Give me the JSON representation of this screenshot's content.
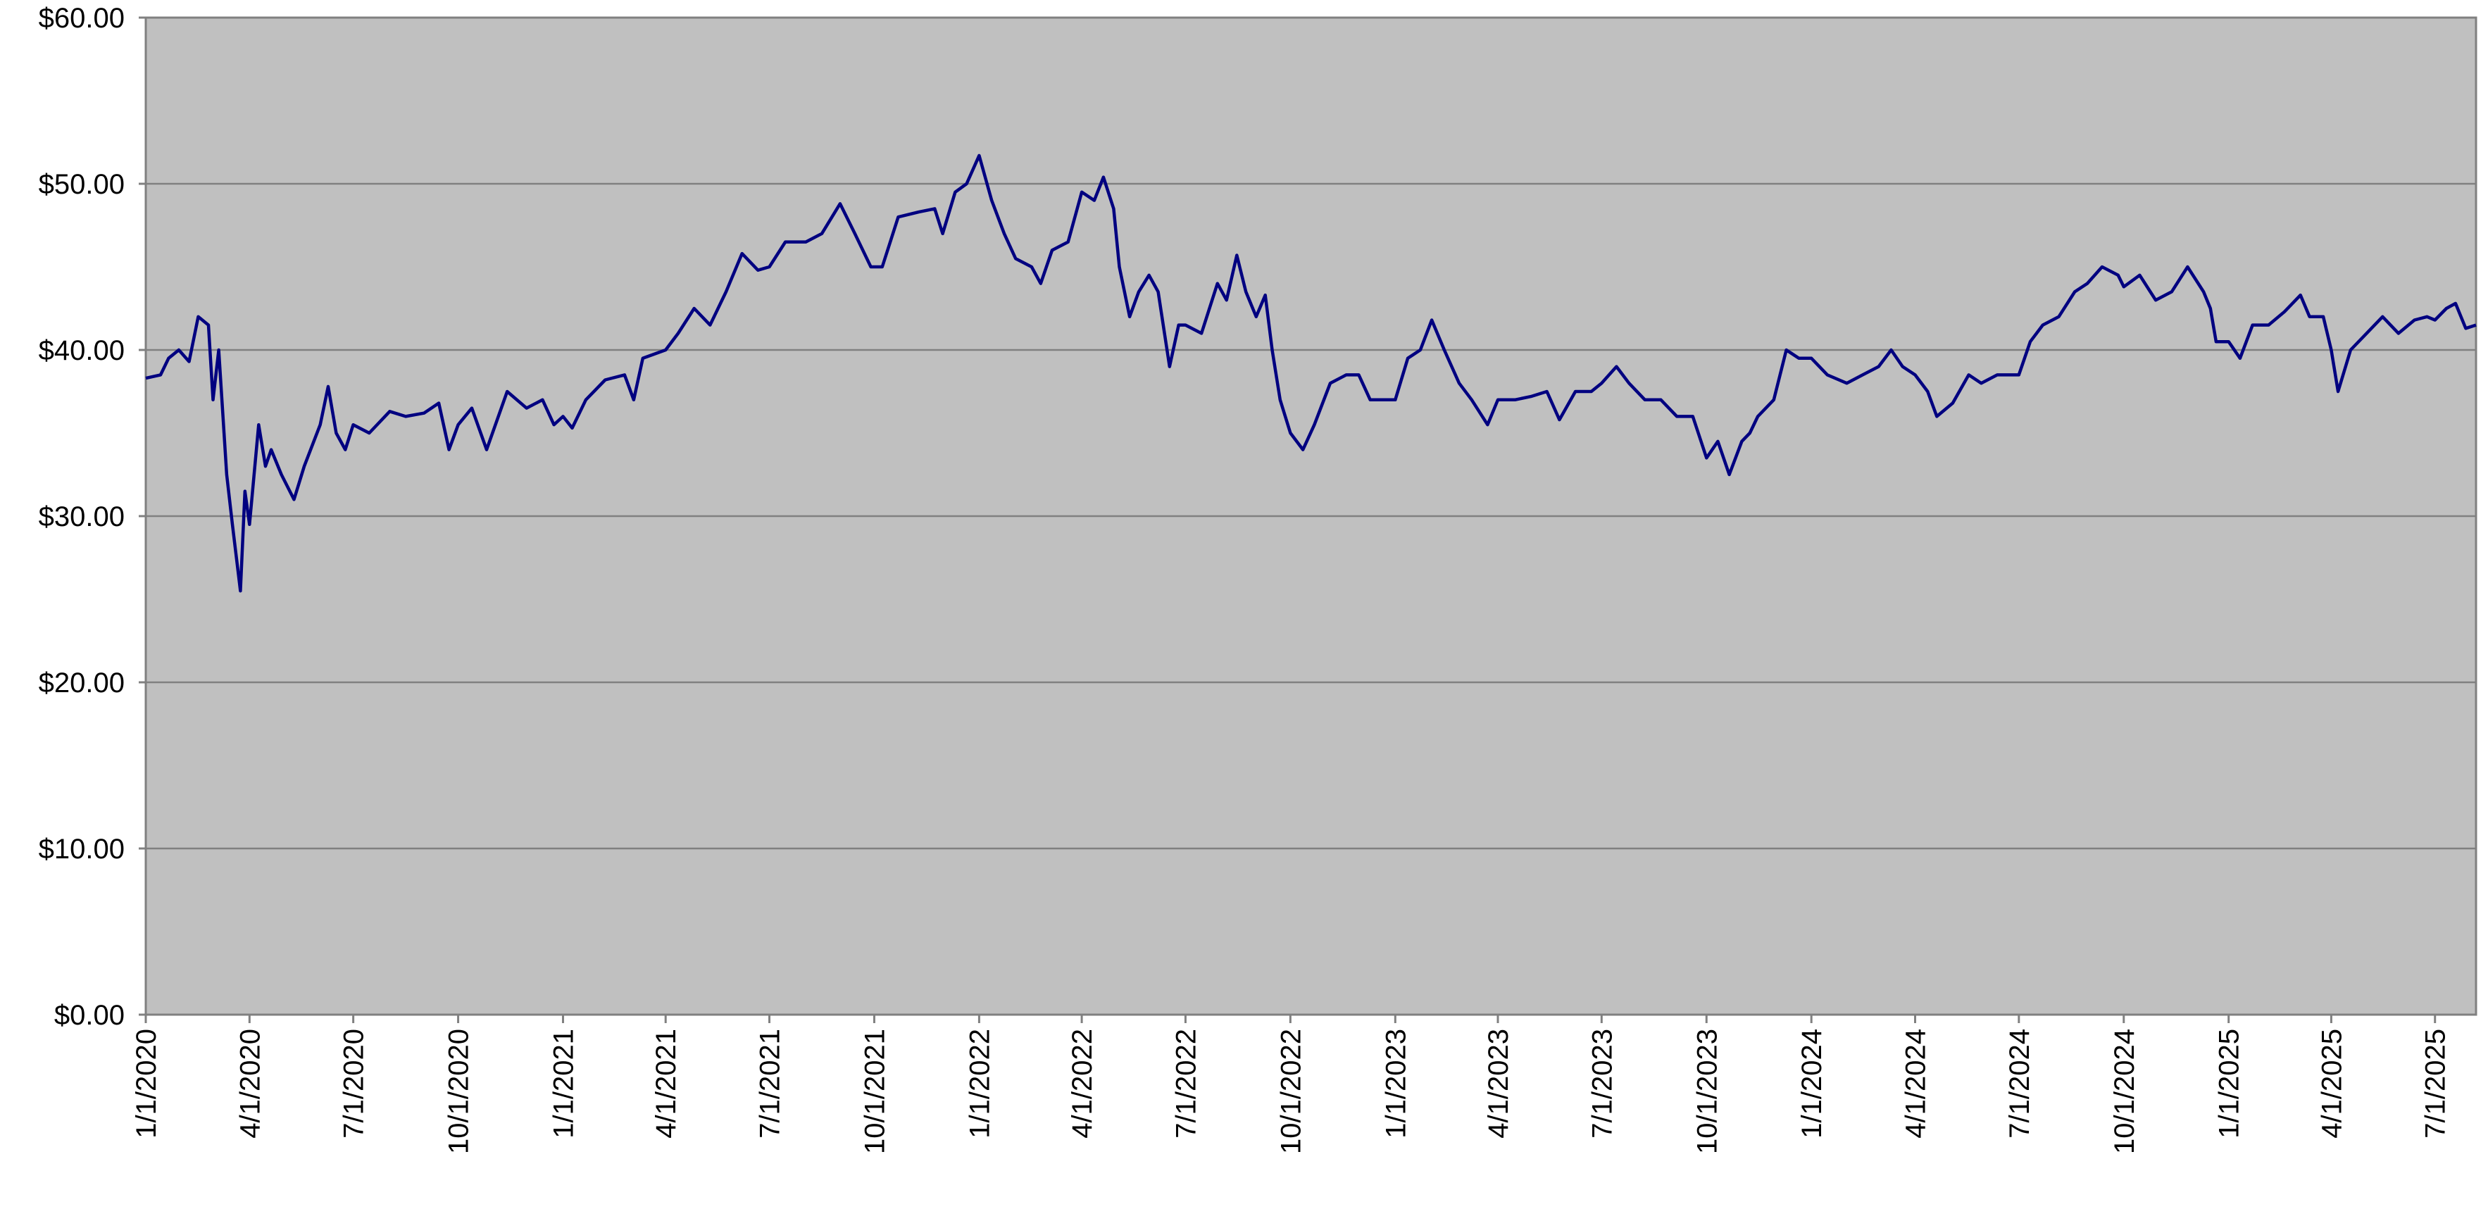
{
  "chart_data": {
    "type": "line",
    "x": [
      "2020-01-01",
      "2020-01-14",
      "2020-01-21",
      "2020-01-30",
      "2020-02-08",
      "2020-02-16",
      "2020-02-25",
      "2020-02-29",
      "2020-03-05",
      "2020-03-12",
      "2020-03-17",
      "2020-03-24",
      "2020-03-28",
      "2020-04-01",
      "2020-04-09",
      "2020-04-15",
      "2020-04-20",
      "2020-04-29",
      "2020-05-10",
      "2020-05-19",
      "2020-06-02",
      "2020-06-09",
      "2020-06-16",
      "2020-06-24",
      "2020-07-01",
      "2020-07-15",
      "2020-08-02",
      "2020-08-16",
      "2020-09-01",
      "2020-09-14",
      "2020-09-23",
      "2020-10-01",
      "2020-10-13",
      "2020-10-26",
      "2020-11-13",
      "2020-11-30",
      "2020-12-14",
      "2020-12-24",
      "2021-01-01",
      "2021-01-09",
      "2021-01-21",
      "2021-02-07",
      "2021-02-24",
      "2021-03-04",
      "2021-03-12",
      "2021-04-01",
      "2021-04-12",
      "2021-04-26",
      "2021-05-10",
      "2021-05-24",
      "2021-06-07",
      "2021-06-21",
      "2021-07-01",
      "2021-07-15",
      "2021-08-02",
      "2021-08-16",
      "2021-09-01",
      "2021-09-14",
      "2021-09-28",
      "2021-10-08",
      "2021-10-22",
      "2021-11-09",
      "2021-11-23",
      "2021-11-30",
      "2021-12-11",
      "2021-12-21",
      "2022-01-01",
      "2022-01-12",
      "2022-01-23",
      "2022-02-02",
      "2022-02-16",
      "2022-02-24",
      "2022-03-06",
      "2022-03-20",
      "2022-04-01",
      "2022-04-12",
      "2022-04-20",
      "2022-04-29",
      "2022-05-04",
      "2022-05-13",
      "2022-05-21",
      "2022-05-30",
      "2022-06-07",
      "2022-06-17",
      "2022-06-25",
      "2022-07-01",
      "2022-07-15",
      "2022-07-29",
      "2022-08-06",
      "2022-08-15",
      "2022-08-23",
      "2022-09-01",
      "2022-09-09",
      "2022-09-15",
      "2022-09-22",
      "2022-10-01",
      "2022-10-12",
      "2022-10-22",
      "2022-11-05",
      "2022-11-19",
      "2022-11-30",
      "2022-12-10",
      "2022-12-20",
      "2023-01-01",
      "2023-01-12",
      "2023-01-23",
      "2023-02-02",
      "2023-02-13",
      "2023-02-26",
      "2023-03-09",
      "2023-03-23",
      "2023-04-01",
      "2023-04-16",
      "2023-04-30",
      "2023-05-14",
      "2023-05-25",
      "2023-06-08",
      "2023-06-22",
      "2023-07-01",
      "2023-07-14",
      "2023-07-25",
      "2023-08-08",
      "2023-08-22",
      "2023-09-05",
      "2023-09-19",
      "2023-10-01",
      "2023-10-11",
      "2023-10-21",
      "2023-11-01",
      "2023-11-08",
      "2023-11-15",
      "2023-11-29",
      "2023-12-10",
      "2023-12-21",
      "2024-01-01",
      "2024-01-15",
      "2024-02-01",
      "2024-02-15",
      "2024-02-29",
      "2024-03-11",
      "2024-03-21",
      "2024-04-01",
      "2024-04-12",
      "2024-04-20",
      "2024-05-04",
      "2024-05-18",
      "2024-05-29",
      "2024-06-12",
      "2024-07-01",
      "2024-07-11",
      "2024-07-22",
      "2024-08-05",
      "2024-08-19",
      "2024-08-30",
      "2024-09-12",
      "2024-09-26",
      "2024-10-01",
      "2024-10-15",
      "2024-10-29",
      "2024-11-12",
      "2024-11-26",
      "2024-12-10",
      "2024-12-16",
      "2024-12-21",
      "2025-01-01",
      "2025-01-11",
      "2025-01-22",
      "2025-02-05",
      "2025-02-19",
      "2025-03-05",
      "2025-03-13",
      "2025-03-25",
      "2025-04-01",
      "2025-04-07",
      "2025-04-18",
      "2025-05-02",
      "2025-05-16",
      "2025-05-30",
      "2025-06-13",
      "2025-06-24",
      "2025-07-01",
      "2025-07-11",
      "2025-07-19",
      "2025-07-28",
      "2025-08-06"
    ],
    "series": [
      {
        "color": "#000080",
        "values": [
          38.3,
          38.5,
          39.5,
          40,
          39.3,
          42,
          41.5,
          37,
          40,
          32.5,
          29.5,
          25.5,
          31.5,
          29.5,
          35.5,
          33,
          34,
          32.5,
          31,
          33,
          35.5,
          37.8,
          35,
          34,
          35.5,
          35,
          36.3,
          36,
          36.2,
          36.8,
          34,
          35.5,
          36.5,
          34,
          37.5,
          36.5,
          37,
          35.5,
          36,
          35.3,
          37,
          38.2,
          38.5,
          37,
          39.5,
          40,
          41,
          42.5,
          41.5,
          43.5,
          45.8,
          44.8,
          45,
          46.5,
          46.5,
          47,
          48.8,
          47,
          45,
          45,
          48,
          48.3,
          48.5,
          47,
          49.5,
          50,
          51.7,
          49,
          47,
          45.5,
          45,
          44,
          46,
          46.5,
          49.5,
          49,
          50.4,
          48.5,
          45,
          42,
          43.5,
          44.5,
          43.5,
          39,
          41.5,
          41.5,
          41,
          44,
          43,
          45.7,
          43.5,
          42,
          43.3,
          40,
          37,
          35,
          34,
          35.5,
          38,
          38.5,
          38.5,
          37,
          37,
          37,
          39.5,
          40,
          41.8,
          40,
          38,
          37,
          35.5,
          37,
          37,
          37.2,
          37.5,
          35.8,
          37.5,
          37.5,
          38,
          39,
          38,
          37,
          37,
          36,
          36,
          33.5,
          34.5,
          32.5,
          34.5,
          35,
          36,
          37,
          40,
          39.5,
          39.5,
          38.5,
          38,
          38.5,
          39,
          40,
          39,
          38.5,
          37.5,
          36,
          36.8,
          38.5,
          38,
          38.5,
          38.5,
          40.5,
          41.5,
          42,
          43.5,
          44,
          45,
          44.5,
          43.8,
          44.5,
          43,
          43.5,
          45,
          43.5,
          42.5,
          40.5,
          40.5,
          39.5,
          41.5,
          41.5,
          42.3,
          43.3,
          42,
          42,
          40,
          37.5,
          40,
          41,
          42,
          41,
          41.8,
          42,
          41.8,
          42.5,
          42.8,
          41.3,
          41.5
        ]
      }
    ],
    "xlim": [
      "2020-01-01",
      "2025-08-06"
    ],
    "xticks": [
      {
        "value": "2020-01-01",
        "label": "1/1/2020"
      },
      {
        "value": "2020-04-01",
        "label": "4/1/2020"
      },
      {
        "value": "2020-07-01",
        "label": "7/1/2020"
      },
      {
        "value": "2020-10-01",
        "label": "10/1/2020"
      },
      {
        "value": "2021-01-01",
        "label": "1/1/2021"
      },
      {
        "value": "2021-04-01",
        "label": "4/1/2021"
      },
      {
        "value": "2021-07-01",
        "label": "7/1/2021"
      },
      {
        "value": "2021-10-01",
        "label": "10/1/2021"
      },
      {
        "value": "2022-01-01",
        "label": "1/1/2022"
      },
      {
        "value": "2022-04-01",
        "label": "4/1/2022"
      },
      {
        "value": "2022-07-01",
        "label": "7/1/2022"
      },
      {
        "value": "2022-10-01",
        "label": "10/1/2022"
      },
      {
        "value": "2023-01-01",
        "label": "1/1/2023"
      },
      {
        "value": "2023-04-01",
        "label": "4/1/2023"
      },
      {
        "value": "2023-07-01",
        "label": "7/1/2023"
      },
      {
        "value": "2023-10-01",
        "label": "10/1/2023"
      },
      {
        "value": "2024-01-01",
        "label": "1/1/2024"
      },
      {
        "value": "2024-04-01",
        "label": "4/1/2024"
      },
      {
        "value": "2024-07-01",
        "label": "7/1/2024"
      },
      {
        "value": "2024-10-01",
        "label": "10/1/2024"
      },
      {
        "value": "2025-01-01",
        "label": "1/1/2025"
      },
      {
        "value": "2025-04-01",
        "label": "4/1/2025"
      },
      {
        "value": "2025-07-01",
        "label": "7/1/2025"
      }
    ],
    "ylim": [
      0,
      60
    ],
    "yticks": [
      {
        "value": 0,
        "label": "$0.00"
      },
      {
        "value": 10,
        "label": "$10.00"
      },
      {
        "value": 20,
        "label": "$20.00"
      },
      {
        "value": 30,
        "label": "$30.00"
      },
      {
        "value": 40,
        "label": "$40.00"
      },
      {
        "value": 50,
        "label": "$50.00"
      },
      {
        "value": 60,
        "label": "$60.00"
      }
    ],
    "grid": true
  }
}
